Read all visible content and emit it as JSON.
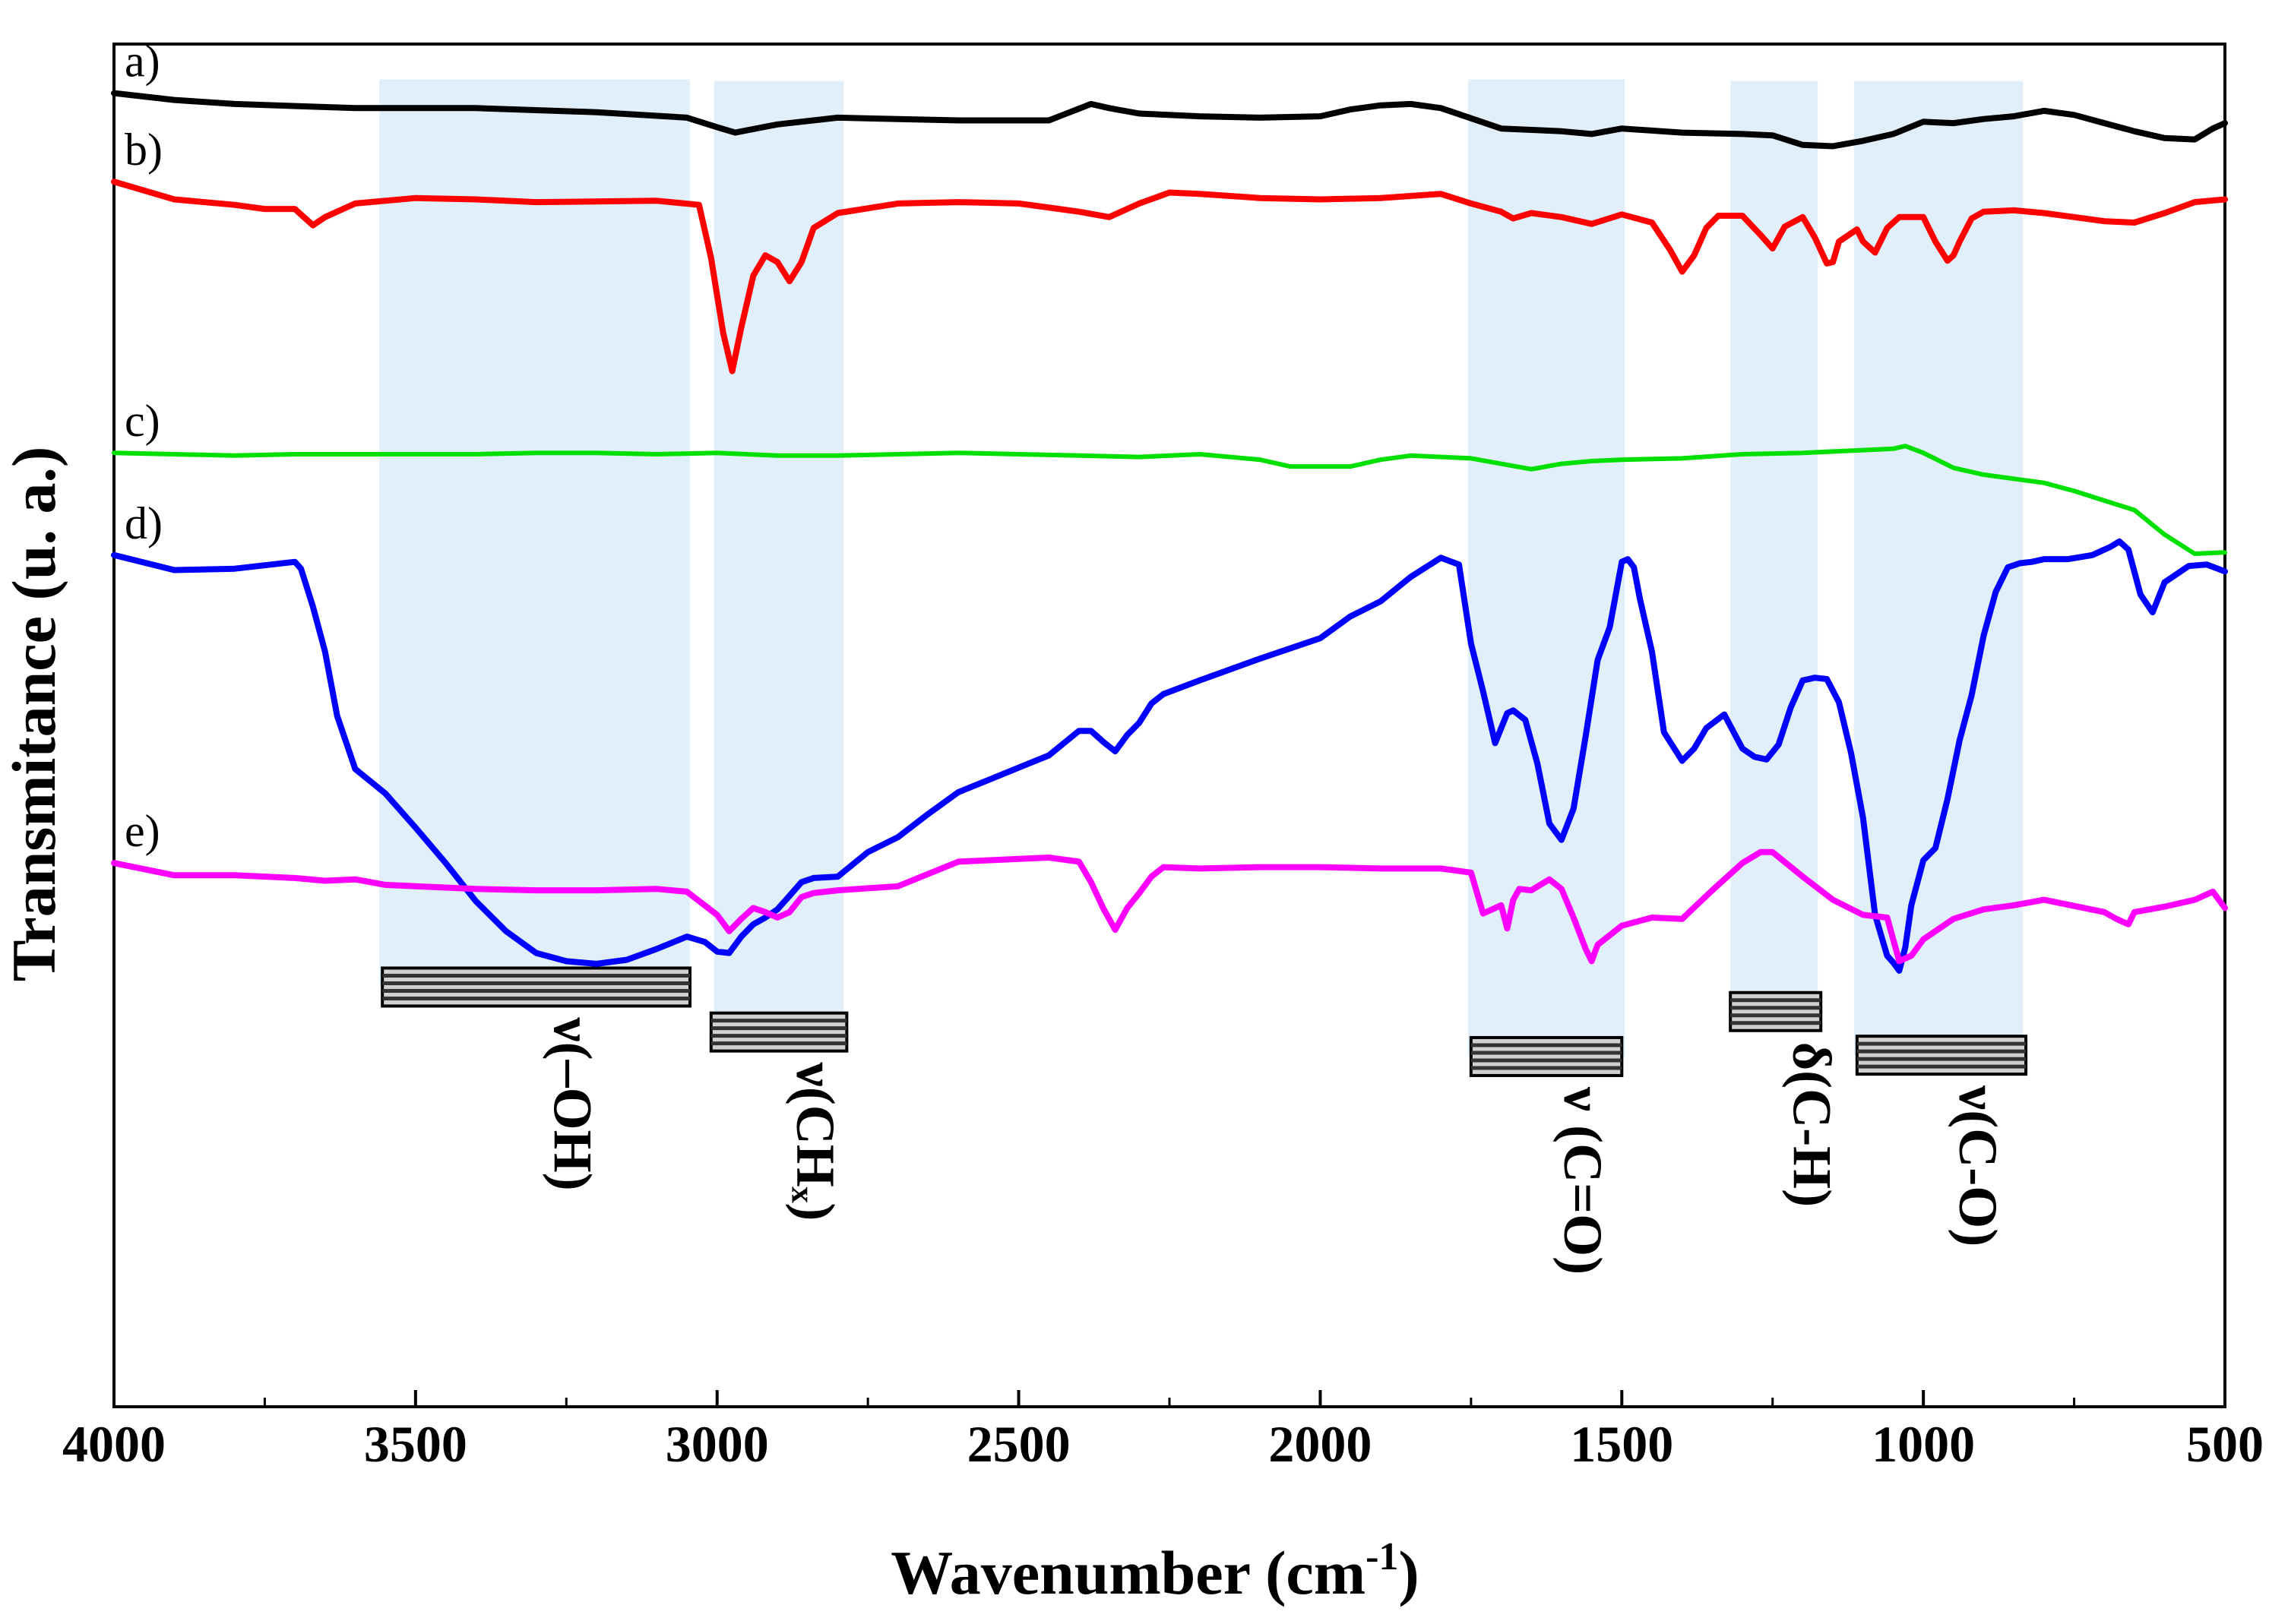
{
  "chart_data": {
    "type": "line",
    "title": "",
    "xlabel": "Wavenumber (cm",
    "xlabel_sup": "-1",
    "xlabel_close": ")",
    "ylabel": "Transmitance (u. a.)",
    "xlim": [
      4000,
      500
    ],
    "x_reversed": true,
    "ylim": [
      0,
      100
    ],
    "yticks_visible": false,
    "xticks": [
      4000,
      3500,
      3000,
      2500,
      2000,
      1500,
      1000,
      500
    ],
    "xtick_labels": [
      "4000",
      "3500",
      "3000",
      "2500",
      "2000",
      "1500",
      "1000",
      "500"
    ],
    "grid": false,
    "legend": "none (series labelled inline at left)",
    "series": [
      {
        "name": "a)",
        "color": "#000000",
        "x": [
          4000,
          3900,
          3800,
          3600,
          3400,
          3200,
          3050,
          3000,
          2970,
          2900,
          2800,
          2600,
          2450,
          2380,
          2350,
          2300,
          2200,
          2100,
          2000,
          1950,
          1900,
          1850,
          1800,
          1700,
          1600,
          1550,
          1500,
          1400,
          1300,
          1250,
          1200,
          1150,
          1100,
          1050,
          1000,
          950,
          900,
          850,
          800,
          750,
          700,
          650,
          600,
          550,
          520,
          500
        ],
        "y": [
          96.4,
          95.9,
          95.6,
          95.3,
          95.3,
          95.0,
          94.6,
          93.9,
          93.5,
          94.1,
          94.6,
          94.4,
          94.4,
          95.6,
          95.3,
          94.9,
          94.7,
          94.6,
          94.7,
          95.2,
          95.5,
          95.6,
          95.3,
          93.8,
          93.6,
          93.4,
          93.8,
          93.5,
          93.4,
          93.3,
          92.6,
          92.5,
          92.9,
          93.4,
          94.3,
          94.2,
          94.5,
          94.7,
          95.1,
          94.8,
          94.2,
          93.6,
          93.1,
          93.0,
          93.8,
          94.2
        ]
      },
      {
        "name": "b)",
        "color": "#ff0000",
        "x": [
          4000,
          3900,
          3800,
          3750,
          3700,
          3670,
          3650,
          3600,
          3500,
          3400,
          3300,
          3100,
          3030,
          3010,
          2990,
          2975,
          2960,
          2940,
          2920,
          2900,
          2880,
          2860,
          2840,
          2800,
          2700,
          2600,
          2500,
          2400,
          2350,
          2300,
          2250,
          2200,
          2100,
          2000,
          1900,
          1800,
          1750,
          1700,
          1680,
          1650,
          1600,
          1550,
          1500,
          1450,
          1420,
          1400,
          1380,
          1360,
          1340,
          1300,
          1270,
          1250,
          1230,
          1200,
          1180,
          1160,
          1150,
          1140,
          1110,
          1100,
          1080,
          1060,
          1040,
          1000,
          980,
          960,
          950,
          940,
          920,
          900,
          850,
          800,
          750,
          700,
          650,
          600,
          550,
          500
        ],
        "y": [
          89.9,
          88.6,
          88.2,
          87.9,
          87.9,
          86.7,
          87.3,
          88.3,
          88.7,
          88.6,
          88.4,
          88.5,
          88.2,
          84.3,
          78.8,
          76.0,
          79.2,
          83.0,
          84.5,
          84.0,
          82.6,
          84.0,
          86.5,
          87.6,
          88.3,
          88.4,
          88.3,
          87.7,
          87.3,
          88.3,
          89.1,
          89.0,
          88.7,
          88.6,
          88.7,
          89.0,
          88.3,
          87.7,
          87.2,
          87.6,
          87.3,
          86.8,
          87.5,
          86.9,
          84.9,
          83.3,
          84.5,
          86.5,
          87.4,
          87.4,
          86.0,
          85.0,
          86.6,
          87.3,
          85.8,
          83.9,
          84.0,
          85.5,
          86.4,
          85.5,
          84.7,
          86.5,
          87.3,
          87.3,
          85.5,
          84.1,
          84.5,
          85.5,
          87.2,
          87.7,
          87.8,
          87.6,
          87.3,
          87.0,
          86.9,
          87.6,
          88.4,
          88.6
        ]
      },
      {
        "name": "c)",
        "color": "#00e000",
        "x": [
          4000,
          3900,
          3800,
          3700,
          3600,
          3500,
          3400,
          3300,
          3200,
          3100,
          3000,
          2900,
          2800,
          2700,
          2600,
          2500,
          2400,
          2300,
          2200,
          2100,
          2050,
          2000,
          1950,
          1900,
          1850,
          1800,
          1750,
          1700,
          1650,
          1600,
          1550,
          1500,
          1400,
          1300,
          1200,
          1100,
          1050,
          1030,
          1000,
          950,
          900,
          850,
          800,
          750,
          700,
          650,
          600,
          550,
          500
        ],
        "y": [
          70.0,
          69.9,
          69.8,
          69.9,
          69.9,
          69.9,
          69.9,
          70.0,
          70.0,
          69.9,
          70.0,
          69.8,
          69.8,
          69.9,
          70.0,
          69.9,
          69.8,
          69.7,
          69.9,
          69.5,
          69.0,
          69.0,
          69.0,
          69.5,
          69.8,
          69.7,
          69.6,
          69.2,
          68.8,
          69.2,
          69.4,
          69.5,
          69.6,
          69.9,
          70.0,
          70.2,
          70.3,
          70.5,
          70.0,
          68.9,
          68.4,
          68.1,
          67.8,
          67.2,
          66.5,
          65.8,
          64.0,
          62.6,
          62.7
        ]
      },
      {
        "name": "d)",
        "color": "#0000ff",
        "x": [
          4000,
          3900,
          3800,
          3700,
          3690,
          3670,
          3650,
          3630,
          3600,
          3550,
          3500,
          3450,
          3400,
          3350,
          3300,
          3250,
          3200,
          3150,
          3100,
          3050,
          3020,
          3000,
          2980,
          2960,
          2940,
          2920,
          2900,
          2880,
          2860,
          2840,
          2800,
          2750,
          2700,
          2650,
          2600,
          2550,
          2500,
          2450,
          2400,
          2380,
          2360,
          2340,
          2320,
          2300,
          2280,
          2260,
          2200,
          2100,
          2000,
          1950,
          1900,
          1850,
          1800,
          1770,
          1750,
          1730,
          1710,
          1690,
          1680,
          1660,
          1640,
          1620,
          1600,
          1580,
          1560,
          1540,
          1520,
          1500,
          1490,
          1480,
          1470,
          1450,
          1430,
          1400,
          1380,
          1360,
          1330,
          1300,
          1280,
          1260,
          1240,
          1220,
          1200,
          1180,
          1160,
          1140,
          1120,
          1100,
          1080,
          1060,
          1050,
          1040,
          1030,
          1020,
          1000,
          980,
          960,
          940,
          920,
          900,
          880,
          860,
          840,
          820,
          800,
          760,
          720,
          690,
          675,
          660,
          640,
          620,
          600,
          560,
          530,
          500
        ],
        "y": [
          62.5,
          61.4,
          61.5,
          62.0,
          61.5,
          58.7,
          55.4,
          50.7,
          46.8,
          45.0,
          42.5,
          39.9,
          37.1,
          34.9,
          33.3,
          32.7,
          32.5,
          32.8,
          33.6,
          34.5,
          34.1,
          33.4,
          33.3,
          34.5,
          35.4,
          35.9,
          36.5,
          37.5,
          38.5,
          38.8,
          38.9,
          40.7,
          41.8,
          43.5,
          45.1,
          46.0,
          46.9,
          47.8,
          49.6,
          49.6,
          48.8,
          48.1,
          49.3,
          50.2,
          51.6,
          52.3,
          53.3,
          54.9,
          56.4,
          58.0,
          59.1,
          60.9,
          62.3,
          61.8,
          56.0,
          52.5,
          48.7,
          50.9,
          51.1,
          50.4,
          47.2,
          42.8,
          41.6,
          43.9,
          49.2,
          54.8,
          57.2,
          62.0,
          62.2,
          61.6,
          59.3,
          55.4,
          49.5,
          47.4,
          48.3,
          49.8,
          50.8,
          48.3,
          47.7,
          47.5,
          48.6,
          51.3,
          53.3,
          53.5,
          53.4,
          51.7,
          48.0,
          43.2,
          36.1,
          33.1,
          32.6,
          32.0,
          33.7,
          36.8,
          40.1,
          41.0,
          44.6,
          48.9,
          52.2,
          56.6,
          59.8,
          61.6,
          61.9,
          62.0,
          62.2,
          62.2,
          62.5,
          63.1,
          63.5,
          62.9,
          59.6,
          58.3,
          60.5,
          61.7,
          61.8,
          61.3
        ]
      },
      {
        "name": "e)",
        "color": "#ff00ff",
        "x": [
          4000,
          3900,
          3800,
          3700,
          3650,
          3600,
          3550,
          3500,
          3400,
          3300,
          3200,
          3100,
          3050,
          3000,
          2980,
          2960,
          2940,
          2920,
          2900,
          2880,
          2860,
          2840,
          2800,
          2700,
          2600,
          2500,
          2450,
          2400,
          2380,
          2360,
          2340,
          2320,
          2300,
          2280,
          2260,
          2200,
          2100,
          2000,
          1900,
          1800,
          1750,
          1730,
          1700,
          1690,
          1680,
          1670,
          1650,
          1620,
          1600,
          1580,
          1560,
          1550,
          1540,
          1500,
          1450,
          1400,
          1350,
          1300,
          1270,
          1250,
          1200,
          1150,
          1100,
          1060,
          1040,
          1020,
          1000,
          950,
          900,
          850,
          800,
          700,
          680,
          660,
          650,
          600,
          550,
          520,
          500
        ],
        "y": [
          39.9,
          39.0,
          39.0,
          38.8,
          38.6,
          38.7,
          38.3,
          38.2,
          38.0,
          37.9,
          37.9,
          38.0,
          37.8,
          36.1,
          34.9,
          35.8,
          36.6,
          36.3,
          35.9,
          36.3,
          37.4,
          37.7,
          37.9,
          38.2,
          40.0,
          40.2,
          40.3,
          40.0,
          38.5,
          36.6,
          35.0,
          36.6,
          37.7,
          38.9,
          39.6,
          39.5,
          39.6,
          39.6,
          39.5,
          39.5,
          39.2,
          36.2,
          36.8,
          35.1,
          37.2,
          38.0,
          37.9,
          38.7,
          38.0,
          35.9,
          33.6,
          32.7,
          33.9,
          35.3,
          35.9,
          35.8,
          37.9,
          39.9,
          40.7,
          40.7,
          38.9,
          37.2,
          36.1,
          35.9,
          32.7,
          33.1,
          34.3,
          35.8,
          36.5,
          36.8,
          37.2,
          36.3,
          35.8,
          35.4,
          36.3,
          36.7,
          37.2,
          37.8,
          36.6
        ]
      }
    ],
    "shaded_regions": [
      {
        "x1": 3560,
        "x2": 3045,
        "y_top": 97.4,
        "label": "ν(–OH)"
      },
      {
        "x1": 3005,
        "x2": 2790,
        "y_top": 97.3,
        "label": "ν(CHₓ)"
      },
      {
        "x1": 1755,
        "x2": 1495,
        "y_top": 97.4,
        "label": "ν (C=O)"
      },
      {
        "x1": 1320,
        "x2": 1175,
        "y_top": 97.3,
        "label": "δ(C-H)"
      },
      {
        "x1": 1115,
        "x2": 835,
        "y_top": 97.3,
        "label": "ν(C-O)"
      }
    ],
    "assignment_bars": [
      {
        "x1": 3555,
        "x2": 3045,
        "y": 30.8,
        "label": "ν(–OH)"
      },
      {
        "x1": 3010,
        "x2": 2785,
        "y": 27.5,
        "label": "ν(CHₓ)"
      },
      {
        "x1": 1750,
        "x2": 1500,
        "y": 25.7,
        "label": "ν (C=O)"
      },
      {
        "x1": 1320,
        "x2": 1170,
        "y": 29.0,
        "label": "δ(C-H)"
      },
      {
        "x1": 1110,
        "x2": 830,
        "y": 25.8,
        "label": "ν(C-O)"
      }
    ],
    "band_label_color": "#dcecf9"
  }
}
